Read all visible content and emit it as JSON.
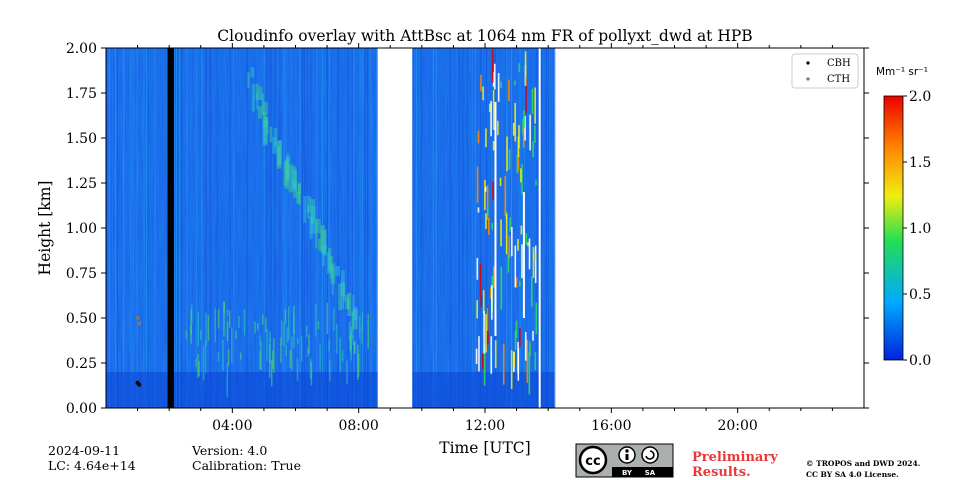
{
  "chart_data": {
    "type": "heatmap",
    "title": "Cloudinfo overlay with AttBsc at 1064 nm FR of pollyxt_dwd at HPB",
    "xlabel": "Time [UTC]",
    "ylabel": "Height [km]",
    "xlim_hours": [
      0,
      24
    ],
    "ylim": [
      0,
      2.0
    ],
    "x_ticks": [
      {
        "v": 4,
        "label": "04:00"
      },
      {
        "v": 8,
        "label": "08:00"
      },
      {
        "v": 12,
        "label": "12:00"
      },
      {
        "v": 16,
        "label": "16:00"
      },
      {
        "v": 20,
        "label": "20:00"
      }
    ],
    "y_ticks": [
      {
        "v": 0.0,
        "label": "0.00"
      },
      {
        "v": 0.25,
        "label": "0.25"
      },
      {
        "v": 0.5,
        "label": "0.50"
      },
      {
        "v": 0.75,
        "label": "0.75"
      },
      {
        "v": 1.0,
        "label": "1.00"
      },
      {
        "v": 1.25,
        "label": "1.25"
      },
      {
        "v": 1.5,
        "label": "1.50"
      },
      {
        "v": 1.75,
        "label": "1.75"
      },
      {
        "v": 2.0,
        "label": "2.00"
      }
    ],
    "colorbar": {
      "unit": "Mm⁻¹ sr⁻¹",
      "range": [
        0.0,
        2.0
      ],
      "ticks": [
        {
          "v": 0.0,
          "label": "0.0"
        },
        {
          "v": 0.5,
          "label": "0.5"
        },
        {
          "v": 1.0,
          "label": "1.0"
        },
        {
          "v": 1.5,
          "label": "1.5"
        },
        {
          "v": 2.0,
          "label": "2.0"
        }
      ],
      "colors": [
        "#0022dd",
        "#00aaff",
        "#22dd55",
        "#f0ee10",
        "#ff8800",
        "#ee0000"
      ]
    },
    "legend": {
      "position": "top-right",
      "items": [
        {
          "label": "CBH",
          "color": "#000000"
        },
        {
          "label": "CTH",
          "color": "#777777"
        }
      ]
    },
    "data_segments_hours": [
      {
        "start": 0.0,
        "end": 8.6,
        "note": "valid data"
      },
      {
        "start": 9.7,
        "end": 14.2,
        "note": "valid data, clouds after ~11:55"
      }
    ],
    "gap_hours": [
      8.6,
      9.7
    ],
    "blank_column_hours": [
      1.95,
      2.15
    ],
    "cloud_base_points": [
      {
        "t": 1.0,
        "h": 0.14
      },
      {
        "t": 1.05,
        "h": 0.13
      }
    ],
    "cloud_top_points": [
      {
        "t": 1.0,
        "h": 0.5
      },
      {
        "t": 1.05,
        "h": 0.47
      }
    ],
    "features": [
      {
        "name": "aerosol layer slanting down",
        "from": {
          "t": 4.5,
          "h": 1.85
        },
        "to": {
          "t": 8.0,
          "h": 0.5
        }
      },
      {
        "name": "low cloud signal",
        "t_range": [
          11.7,
          13.6
        ],
        "h_range": [
          0.3,
          2.0
        ]
      }
    ]
  },
  "footer": {
    "date": "2024-09-11",
    "lc": "LC: 4.64e+14",
    "version": "Version: 4.0",
    "calibration": "Calibration: True",
    "preliminary_line1": "Preliminary",
    "preliminary_line2": "Results.",
    "license_line1": "© TROPOS and DWD 2024.",
    "license_line2": "CC BY SA 4.0 License.",
    "cc_badge": {
      "cc": "cc",
      "by": "BY",
      "sa": "SA"
    }
  }
}
